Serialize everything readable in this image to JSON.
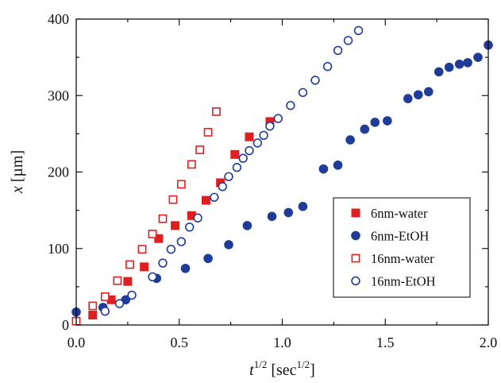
{
  "chart_data": {
    "type": "scatter",
    "xlim": [
      0,
      2.0
    ],
    "ylim": [
      0,
      400
    ],
    "x_ticks": [
      "0.0",
      "0.5",
      "1.0",
      "1.5",
      "2.0"
    ],
    "y_ticks": [
      "0",
      "100",
      "200",
      "300",
      "400"
    ],
    "xlabel": {
      "base": "t",
      "base_sup": "1/2",
      "unit_open": " [sec",
      "unit_sup": "1/2",
      "unit_close": "]"
    },
    "ylabel": {
      "symbol": "x",
      "unit": " [µm]"
    },
    "grid": false,
    "legend_position": "lower-right",
    "series": [
      {
        "name": "6nm-water",
        "marker": "square",
        "filled": true,
        "color": "#e02020",
        "points": [
          [
            0.08,
            13
          ],
          [
            0.17,
            33
          ],
          [
            0.25,
            57
          ],
          [
            0.33,
            76
          ],
          [
            0.4,
            113
          ],
          [
            0.48,
            130
          ],
          [
            0.56,
            143
          ],
          [
            0.63,
            163
          ],
          [
            0.7,
            186
          ],
          [
            0.77,
            223
          ],
          [
            0.84,
            246
          ],
          [
            0.94,
            266
          ]
        ]
      },
      {
        "name": "6nm-EtOH",
        "marker": "circle",
        "filled": true,
        "color": "#1f3c99",
        "points": [
          [
            0.0,
            17
          ],
          [
            0.13,
            23
          ],
          [
            0.24,
            33
          ],
          [
            0.39,
            61
          ],
          [
            0.53,
            74
          ],
          [
            0.64,
            87
          ],
          [
            0.74,
            105
          ],
          [
            0.83,
            130
          ],
          [
            0.95,
            142
          ],
          [
            1.03,
            147
          ],
          [
            1.1,
            155
          ],
          [
            1.2,
            204
          ],
          [
            1.27,
            209
          ],
          [
            1.33,
            242
          ],
          [
            1.4,
            256
          ],
          [
            1.45,
            265
          ],
          [
            1.51,
            267
          ],
          [
            1.61,
            296
          ],
          [
            1.66,
            301
          ],
          [
            1.71,
            305
          ],
          [
            1.76,
            331
          ],
          [
            1.81,
            337
          ],
          [
            1.86,
            341
          ],
          [
            1.9,
            343
          ],
          [
            1.95,
            350
          ],
          [
            2.0,
            366
          ]
        ]
      },
      {
        "name": "16nm-water",
        "marker": "square",
        "filled": false,
        "color": "#e02020",
        "points": [
          [
            0.0,
            5
          ],
          [
            0.08,
            25
          ],
          [
            0.14,
            37
          ],
          [
            0.2,
            58
          ],
          [
            0.26,
            79
          ],
          [
            0.32,
            99
          ],
          [
            0.37,
            119
          ],
          [
            0.42,
            139
          ],
          [
            0.47,
            164
          ],
          [
            0.51,
            184
          ],
          [
            0.56,
            210
          ],
          [
            0.6,
            229
          ],
          [
            0.64,
            252
          ],
          [
            0.68,
            279
          ]
        ]
      },
      {
        "name": "16nm-EtOH",
        "marker": "circle",
        "filled": false,
        "color": "#1f3c99",
        "points": [
          [
            0.14,
            18
          ],
          [
            0.21,
            28
          ],
          [
            0.27,
            39
          ],
          [
            0.37,
            63
          ],
          [
            0.42,
            81
          ],
          [
            0.46,
            99
          ],
          [
            0.51,
            109
          ],
          [
            0.55,
            128
          ],
          [
            0.59,
            140
          ],
          [
            0.67,
            167
          ],
          [
            0.71,
            181
          ],
          [
            0.74,
            194
          ],
          [
            0.78,
            206
          ],
          [
            0.81,
            218
          ],
          [
            0.84,
            228
          ],
          [
            0.88,
            238
          ],
          [
            0.91,
            248
          ],
          [
            0.94,
            260
          ],
          [
            0.98,
            270
          ],
          [
            1.04,
            287
          ],
          [
            1.1,
            304
          ],
          [
            1.16,
            320
          ],
          [
            1.22,
            338
          ],
          [
            1.27,
            359
          ],
          [
            1.32,
            372
          ],
          [
            1.37,
            385
          ]
        ]
      }
    ]
  }
}
